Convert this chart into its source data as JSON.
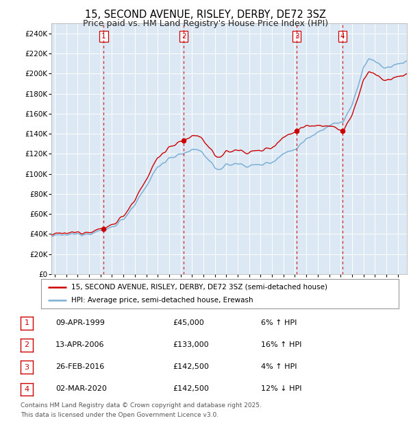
{
  "title": "15, SECOND AVENUE, RISLEY, DERBY, DE72 3SZ",
  "subtitle": "Price paid vs. HM Land Registry's House Price Index (HPI)",
  "plot_bg_color": "#dce9f5",
  "grid_color": "#ffffff",
  "hpi_color": "#7bafd4",
  "price_color": "#cc0000",
  "sale_box_color": "#cc0000",
  "yticks": [
    0,
    20000,
    40000,
    60000,
    80000,
    100000,
    120000,
    140000,
    160000,
    180000,
    200000,
    220000,
    240000
  ],
  "ytick_labels": [
    "£0",
    "£20K",
    "£40K",
    "£60K",
    "£80K",
    "£100K",
    "£120K",
    "£140K",
    "£160K",
    "£180K",
    "£200K",
    "£220K",
    "£240K"
  ],
  "xmin": 1994.7,
  "xmax": 2025.8,
  "ymin": 0,
  "ymax": 250000,
  "transactions": [
    {
      "num": 1,
      "date_str": "09-APR-1999",
      "price": 45000,
      "pct": "6%",
      "dir": "↑",
      "year": 1999.28
    },
    {
      "num": 2,
      "date_str": "13-APR-2006",
      "price": 133000,
      "pct": "16%",
      "dir": "↑",
      "year": 2006.28
    },
    {
      "num": 3,
      "date_str": "26-FEB-2016",
      "price": 142500,
      "pct": "4%",
      "dir": "↑",
      "year": 2016.16
    },
    {
      "num": 4,
      "date_str": "02-MAR-2020",
      "price": 142500,
      "pct": "12%",
      "dir": "↓",
      "year": 2020.17
    }
  ],
  "legend_line1": "15, SECOND AVENUE, RISLEY, DERBY, DE72 3SZ (semi-detached house)",
  "legend_line2": "HPI: Average price, semi-detached house, Erewash",
  "footer1": "Contains HM Land Registry data © Crown copyright and database right 2025.",
  "footer2": "This data is licensed under the Open Government Licence v3.0."
}
